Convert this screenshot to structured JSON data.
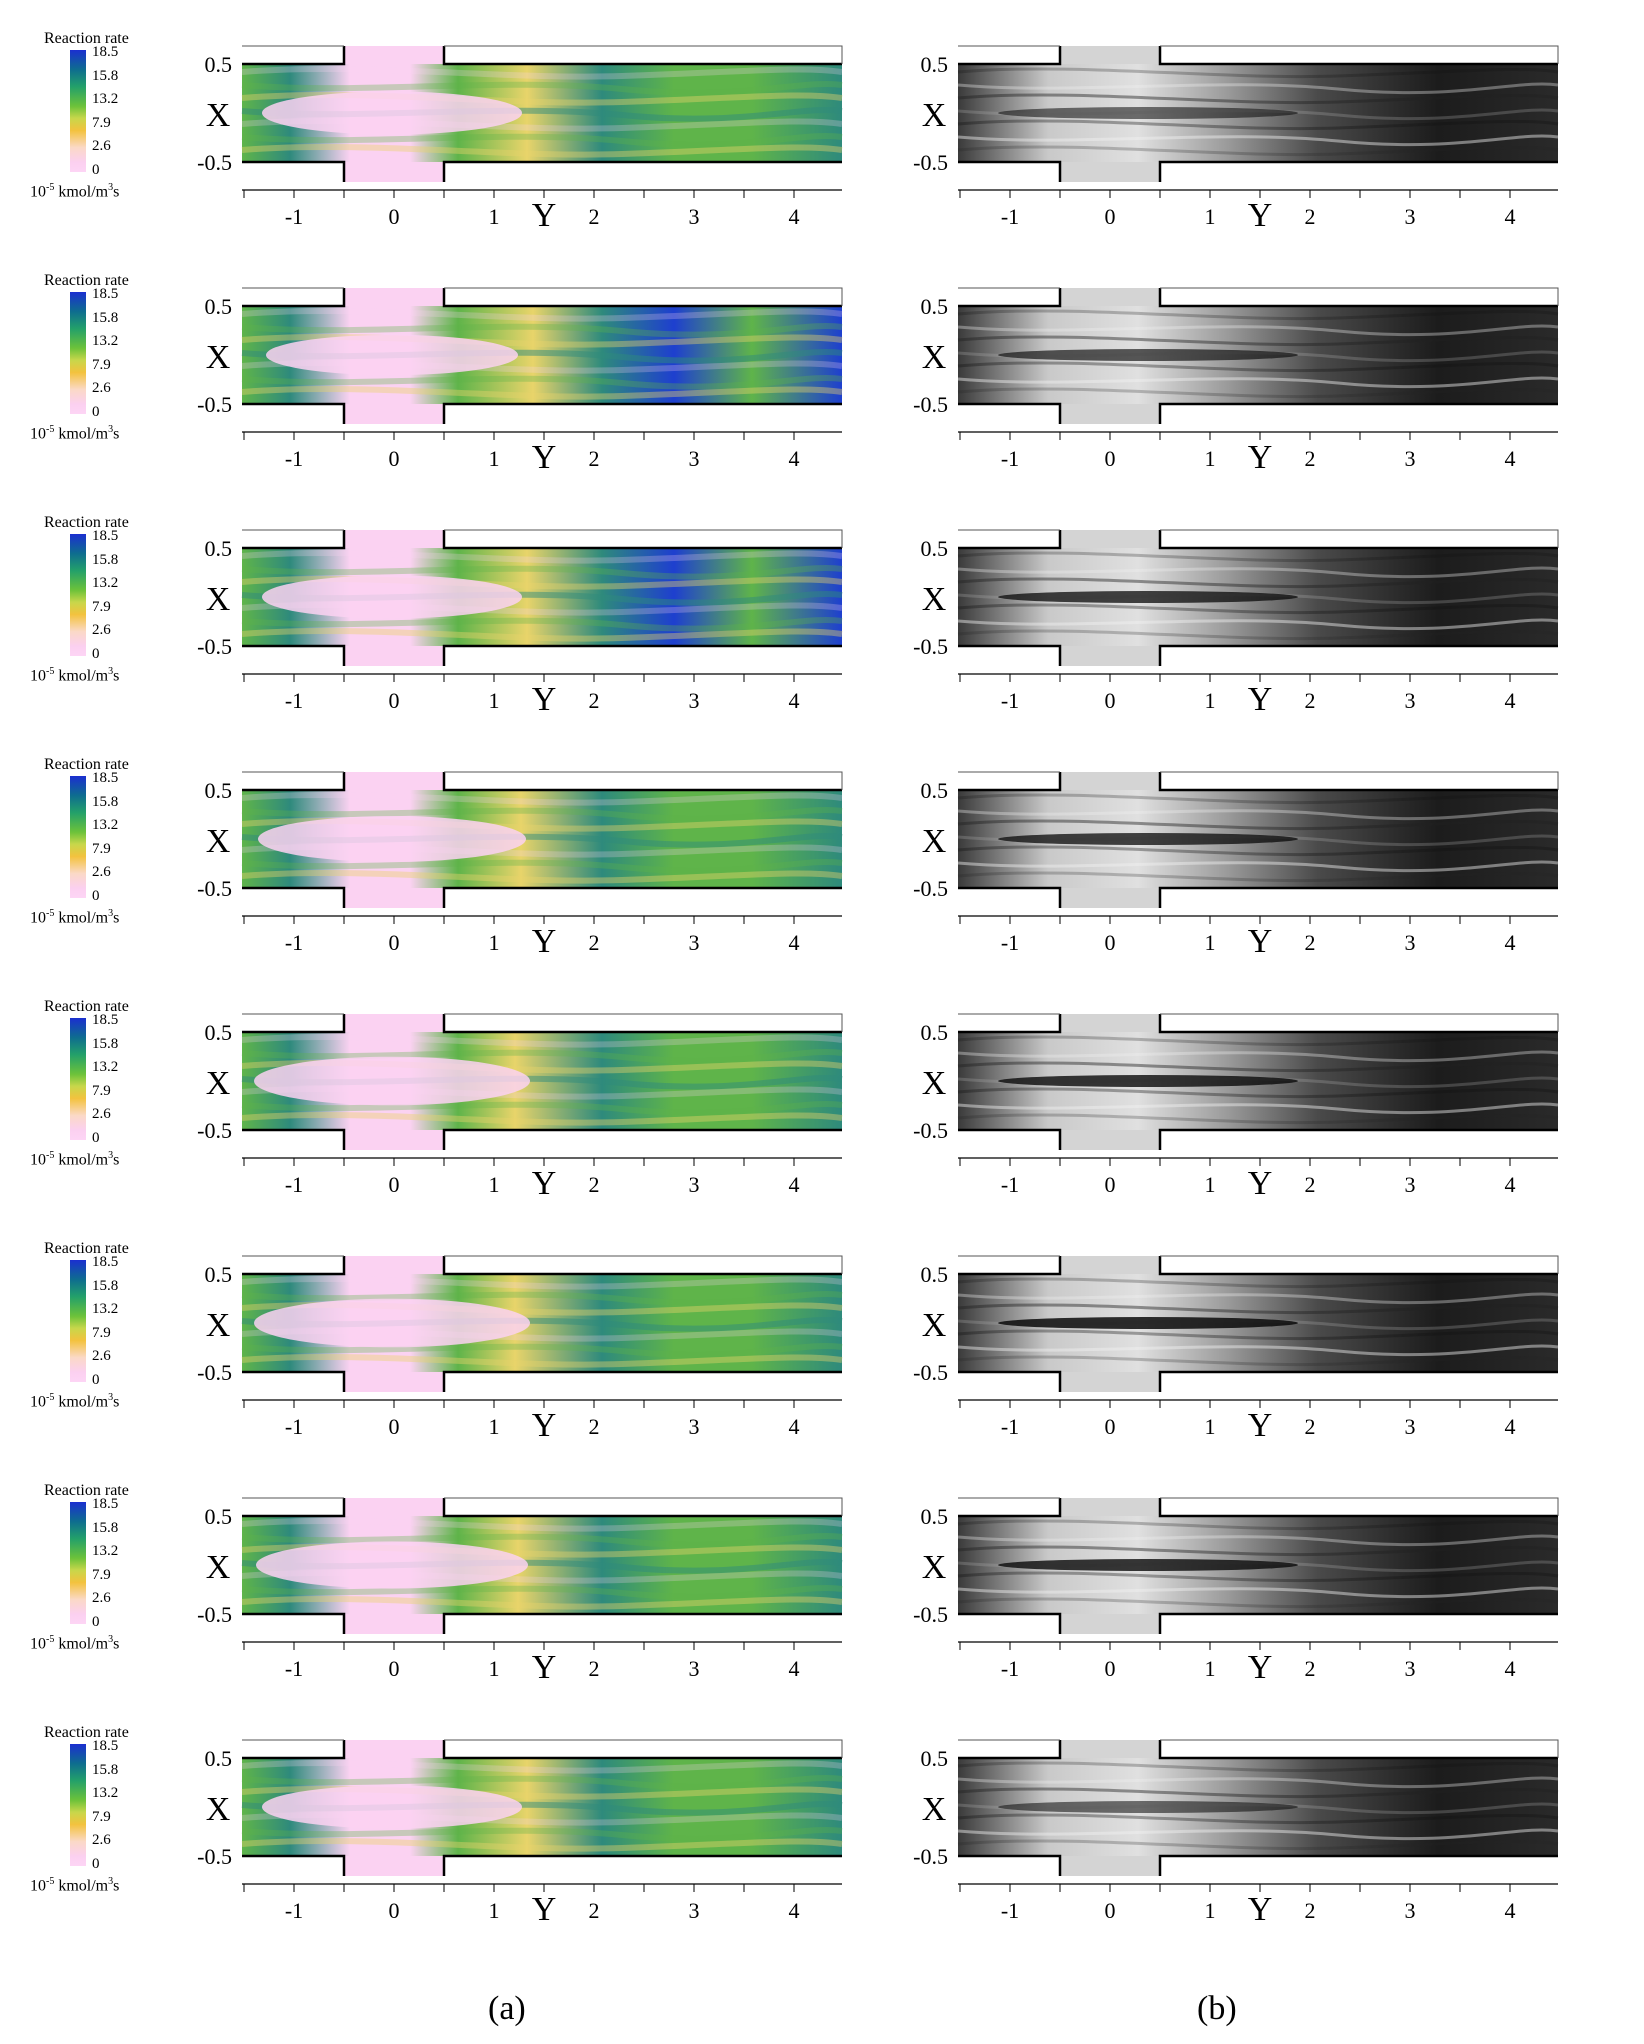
{
  "legend": {
    "title": "Reaction rate",
    "ticks": [
      "18.5",
      "15.8",
      "13.2",
      "7.9",
      "2.6",
      "0"
    ],
    "unit_prefix": "10",
    "unit_exp": "-5",
    "unit_mid": " kmol/m",
    "unit_exp2": "3",
    "unit_suffix": "s"
  },
  "axes": {
    "x_label": "X",
    "y_label": "Y",
    "x_ticks": [
      "0.5",
      "-0.5"
    ],
    "y_ticks": [
      "-1",
      "0",
      "1",
      "2",
      "3",
      "4"
    ]
  },
  "panel_labels": {
    "a": "(a)",
    "b": "(b)"
  },
  "colors": {
    "pink": "#fbd2f2",
    "green": "#5fb44a",
    "blue": "#1e3fcf",
    "teal": "#2e8a7c",
    "yellow": "#e8d46a",
    "gray_dark": "#1c1c1c",
    "gray_light": "#c9c9c9"
  }
}
